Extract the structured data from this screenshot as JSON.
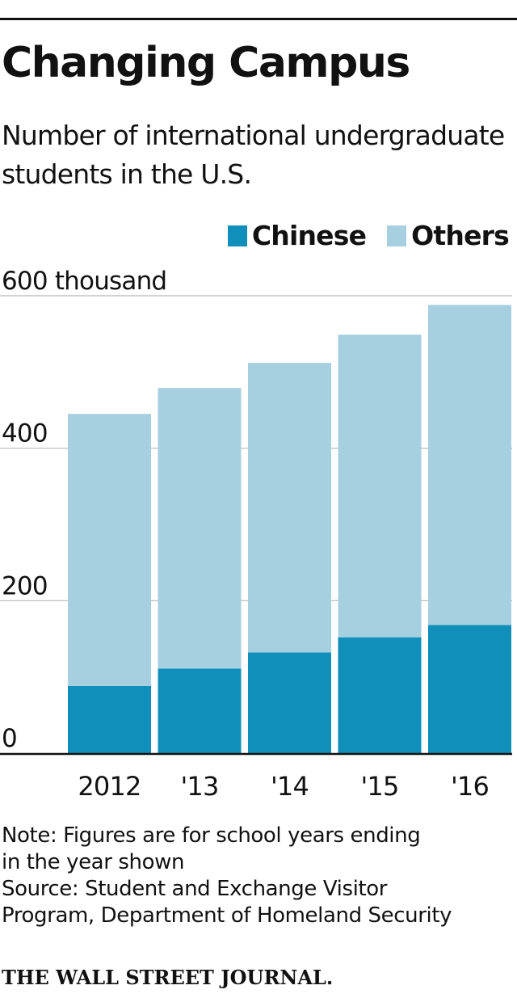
{
  "chart_data": {
    "type": "bar",
    "stacked": true,
    "title": "Changing Campus",
    "subtitle": "Number of international undergraduate students in the U.S.",
    "categories": [
      "2012",
      "'13",
      "'14",
      "'15",
      "'16"
    ],
    "series": [
      {
        "name": "Chinese",
        "values": [
          88,
          111,
          132,
          152,
          168
        ],
        "color": "#0f8fb9"
      },
      {
        "name": "Others",
        "values": [
          357,
          368,
          380,
          397,
          420
        ],
        "color": "#a6d0e0"
      }
    ],
    "y_ticks": [
      {
        "value": 0,
        "label": "0"
      },
      {
        "value": 200,
        "label": "200"
      },
      {
        "value": 400,
        "label": "400"
      },
      {
        "value": 600,
        "label": "600 thousand"
      }
    ],
    "ylim": [
      0,
      600
    ],
    "grid": true,
    "legend_position": "top-right",
    "xlabel": "",
    "ylabel": ""
  },
  "notes": {
    "note_lines": [
      "Note: Figures are for school years ending",
      "in the year shown"
    ],
    "source_lines": [
      "Source: Student and Exchange Visitor",
      "Program, Department of Homeland Security"
    ]
  },
  "brand": "THE WALL STREET JOURNAL."
}
